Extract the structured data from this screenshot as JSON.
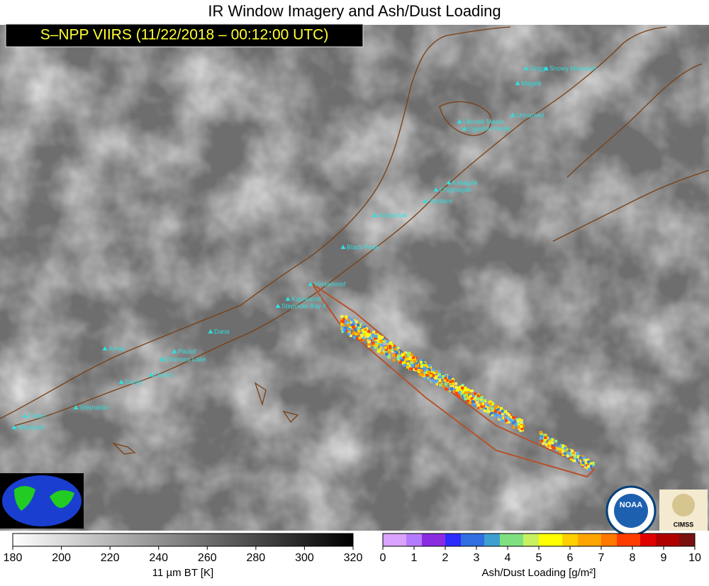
{
  "header": {
    "title": "IR Window Imagery and Ash/Dust Loading",
    "subtitle": "S–NPP VIIRS (11/22/2018 – 00:12:00 UTC)"
  },
  "volcanoes": [
    "Snowy Mountain",
    "Griggs",
    "Mageik",
    "Ukinrek Maars",
    "Ugashik-Peulik",
    "Unnamed",
    "Kialagvik",
    "Chiginagak",
    "Yantarni",
    "Aniakchak",
    "Black Peak",
    "Veniaminof",
    "Kupreanof",
    "Stepovak Bay 4",
    "Dana",
    "Amak",
    "Pavlof",
    "Emmons Lake",
    "Dutton",
    "Frosty",
    "Shishaldin",
    "Fisher",
    "Westdahl"
  ],
  "colorbars": [
    {
      "label": "11 µm BT [K]",
      "range": [
        180,
        320
      ],
      "ticks": [
        180,
        200,
        220,
        240,
        260,
        280,
        300,
        320
      ]
    },
    {
      "label": "Ash/Dust Loading [g/m²]",
      "range": [
        0,
        10
      ],
      "ticks": [
        0,
        1,
        2,
        3,
        4,
        5,
        6,
        7,
        8,
        9,
        10
      ]
    }
  ],
  "logos": {
    "noaa": "NOAA",
    "cimss": "CIMSS"
  }
}
